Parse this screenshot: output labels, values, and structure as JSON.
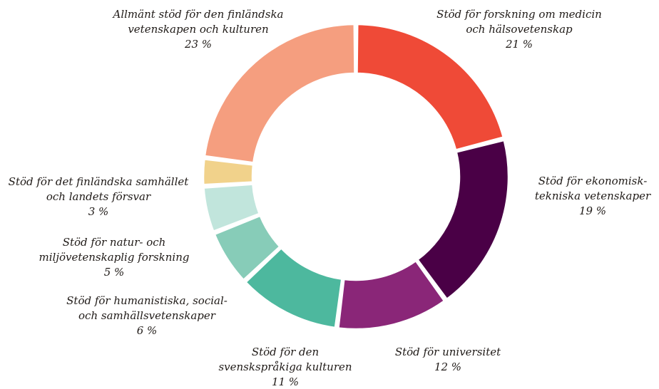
{
  "chart_data": {
    "type": "pie",
    "variant": "donut",
    "title": "",
    "categories": [
      "Stöd för forskning om medicin och hälsovetenskap",
      "Stöd för ekonomisk-tekniska vetenskaper",
      "Stöd för universitet",
      "Stöd för den svenskspråkiga kulturen",
      "Stöd för humanistiska, social- och samhällsvetenskaper",
      "Stöd för natur- och miljövetenskaplig forskning",
      "Stöd för det finländska samhället och landets försvar",
      "Allmänt stöd för den finländska vetenskapen och kulturen"
    ],
    "values": [
      21,
      19,
      12,
      11,
      6,
      5,
      3,
      23
    ],
    "unit": "%",
    "colors": [
      "#ef4a37",
      "#4a0046",
      "#8a2678",
      "#4db89e",
      "#87ccb8",
      "#c1e5dc",
      "#f1d28b",
      "#f59e7f"
    ],
    "labels": [
      {
        "line1": "Stöd för forskning om medicin",
        "line2": "och hälsovetenskap",
        "pct": "21 %"
      },
      {
        "line1": "Stöd för ekonomisk-",
        "line2": "tekniska vetenskaper",
        "pct": "19 %"
      },
      {
        "line1": "Stöd för universitet",
        "pct": "12 %"
      },
      {
        "line1": "Stöd för den",
        "line2": "svenskspråkiga kulturen",
        "pct": "11 %"
      },
      {
        "line1": "Stöd för humanistiska, social-",
        "line2": "och samhällsvetenskaper",
        "pct": "6 %"
      },
      {
        "line1": "Stöd för natur- och",
        "line2": "miljövetenskaplig forskning",
        "pct": "5 %"
      },
      {
        "line1": "Stöd för det finländska samhället",
        "line2": "och landets försvar",
        "pct": "3 %"
      },
      {
        "line1": "Allmänt stöd för den finländska",
        "line2": "vetenskapen och kulturen",
        "pct": "23 %"
      }
    ],
    "legend": "none",
    "grid": false
  }
}
